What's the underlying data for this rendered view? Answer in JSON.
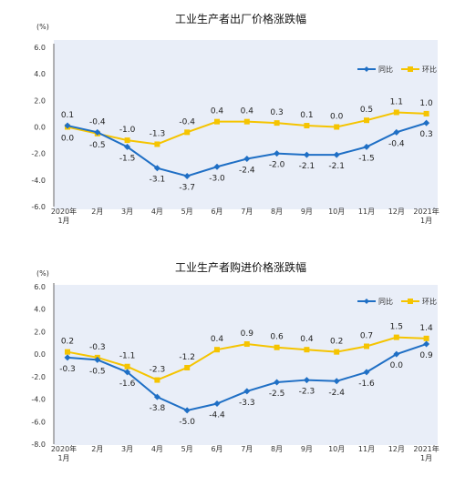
{
  "colors": {
    "yoy": "#1f6fc5",
    "mom": "#f5c400",
    "panel": "#e9eef8"
  },
  "chart_data": [
    {
      "type": "line",
      "title": "工业生产者出厂价格涨跌幅",
      "unit": "(%)",
      "categories": [
        "2020年\n1月",
        "2月",
        "3月",
        "4月",
        "5月",
        "6月",
        "7月",
        "8月",
        "9月",
        "10月",
        "11月",
        "12月",
        "2021年\n1月"
      ],
      "ylim": [
        -6,
        6
      ],
      "yticks": [
        "6.0",
        "4.0",
        "2.0",
        "0.0",
        "-2.0",
        "-4.0",
        "-6.0"
      ],
      "ytick_values": [
        6,
        4,
        2,
        0,
        -2,
        -4,
        -6
      ],
      "legend_position": "top-right",
      "series": [
        {
          "name": "同比",
          "color": "#1f6fc5",
          "values": [
            0.1,
            -0.4,
            -1.5,
            -3.1,
            -3.7,
            -3.0,
            -2.4,
            -2.0,
            -2.1,
            -2.1,
            -1.5,
            -0.4,
            0.3
          ],
          "labels": [
            "0.1",
            "-0.4",
            "-1.5",
            "-3.1",
            "-3.7",
            "-3.0",
            "-2.4",
            "-2.0",
            "-2.1",
            "-2.1",
            "-1.5",
            "-0.4",
            "0.3"
          ]
        },
        {
          "name": "环比",
          "color": "#f5c400",
          "values": [
            0.0,
            -0.5,
            -1.0,
            -1.3,
            -0.4,
            0.4,
            0.4,
            0.3,
            0.1,
            0.0,
            0.5,
            1.1,
            1.0
          ],
          "labels": [
            "0.0",
            "-0.5",
            "-1.0",
            "-1.3",
            "-0.4",
            "0.4",
            "0.4",
            "0.3",
            "0.1",
            "0.0",
            "0.5",
            "1.1",
            "1.0"
          ]
        }
      ]
    },
    {
      "type": "line",
      "title": "工业生产者购进价格涨跌幅",
      "unit": "(%)",
      "categories": [
        "2020年\n1月",
        "2月",
        "3月",
        "4月",
        "5月",
        "6月",
        "7月",
        "8月",
        "9月",
        "10月",
        "11月",
        "12月",
        "2021年\n1月"
      ],
      "ylim": [
        -8,
        6
      ],
      "yticks": [
        "6.0",
        "4.0",
        "2.0",
        "0.0",
        "-2.0",
        "-4.0",
        "-6.0",
        "-8.0"
      ],
      "ytick_values": [
        6,
        4,
        2,
        0,
        -2,
        -4,
        -6,
        -8
      ],
      "legend_position": "top-right",
      "series": [
        {
          "name": "同比",
          "color": "#1f6fc5",
          "values": [
            -0.3,
            -0.5,
            -1.6,
            -3.8,
            -5.0,
            -4.4,
            -3.3,
            -2.5,
            -2.3,
            -2.4,
            -1.6,
            0.0,
            0.9
          ],
          "labels": [
            "-0.3",
            "-0.5",
            "-1.6",
            "-3.8",
            "-5.0",
            "-4.4",
            "-3.3",
            "-2.5",
            "-2.3",
            "-2.4",
            "-1.6",
            "0.0",
            "0.9"
          ]
        },
        {
          "name": "环比",
          "color": "#f5c400",
          "values": [
            0.2,
            -0.3,
            -1.1,
            -2.3,
            -1.2,
            0.4,
            0.9,
            0.6,
            0.4,
            0.2,
            0.7,
            1.5,
            1.4
          ],
          "labels": [
            "0.2",
            "-0.3",
            "-1.1",
            "-2.3",
            "-1.2",
            "0.4",
            "0.9",
            "0.6",
            "0.4",
            "0.2",
            "0.7",
            "1.5",
            "1.4"
          ]
        }
      ]
    }
  ]
}
